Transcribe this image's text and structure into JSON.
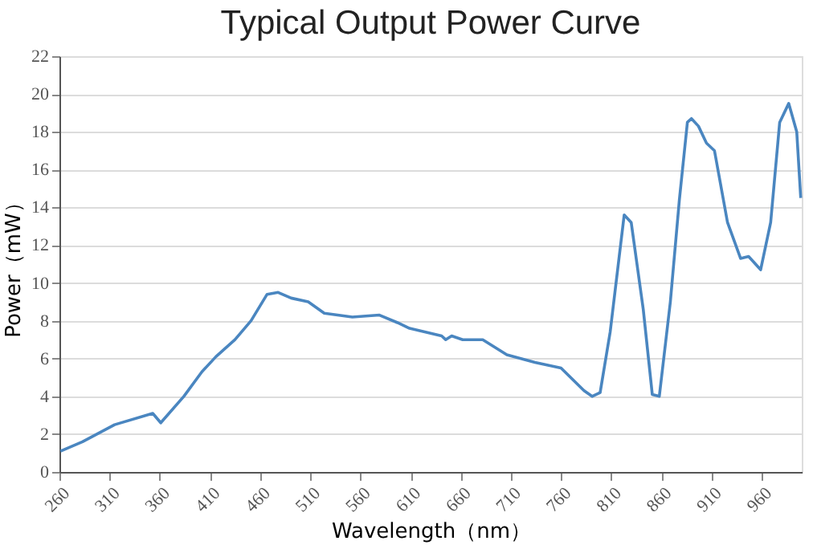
{
  "chart_data": {
    "type": "line",
    "title": "Typical Output Power Curve",
    "xlabel": "Wavelength（nm）",
    "ylabel": "Power（mW）",
    "x": [
      261,
      283,
      315,
      353,
      361,
      384,
      402,
      416,
      435,
      451,
      467,
      478,
      491,
      508,
      524,
      552,
      579,
      597,
      609,
      641,
      645,
      651,
      662,
      682,
      706,
      734,
      760,
      783,
      791,
      799,
      809,
      823,
      830,
      842,
      851,
      858,
      869,
      878,
      886,
      890,
      897,
      905,
      913,
      926,
      939,
      947,
      959,
      969,
      978,
      987,
      995,
      999
    ],
    "series": [
      {
        "color": "#4a86c0",
        "values": [
          1.1,
          1.6,
          2.5,
          3.1,
          2.6,
          4.0,
          5.3,
          6.1,
          7.0,
          8.0,
          9.4,
          9.5,
          9.2,
          9.0,
          8.4,
          8.2,
          8.3,
          7.9,
          7.6,
          7.2,
          7.0,
          7.2,
          7.0,
          7.0,
          6.2,
          5.8,
          5.5,
          4.3,
          4.0,
          4.2,
          7.4,
          13.6,
          13.2,
          8.6,
          4.1,
          4.0,
          9.0,
          14.4,
          18.5,
          18.7,
          18.3,
          17.4,
          17.0,
          13.2,
          11.3,
          11.4,
          10.7,
          13.2,
          18.5,
          19.5,
          18.0,
          14.5
        ]
      }
    ],
    "xlim": [
      260,
      1000
    ],
    "xticks": [
      260,
      310,
      360,
      410,
      460,
      510,
      560,
      610,
      660,
      710,
      760,
      810,
      860,
      910,
      960
    ],
    "ylim": [
      0,
      22
    ],
    "yticks": [
      0,
      2,
      4,
      6,
      8,
      10,
      12,
      14,
      16,
      18,
      20,
      22
    ],
    "grid": "y",
    "marker": "none",
    "line_style": "solid"
  }
}
